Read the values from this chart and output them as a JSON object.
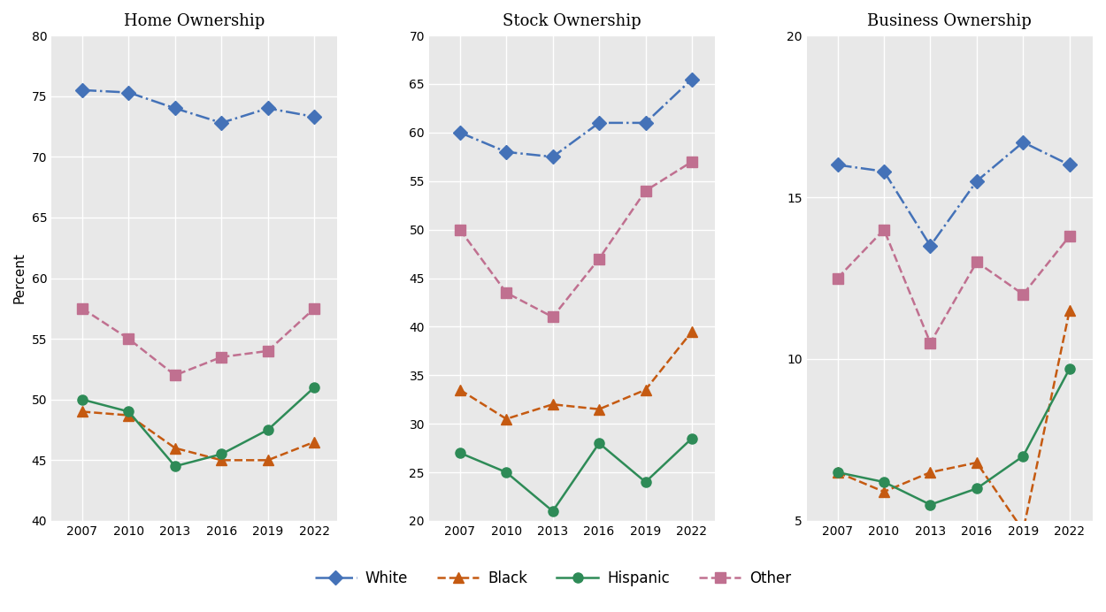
{
  "years": [
    2007,
    2010,
    2013,
    2016,
    2019,
    2022
  ],
  "home_ownership": {
    "White": [
      75.5,
      75.3,
      74.0,
      72.8,
      74.0,
      73.3
    ],
    "Black": [
      49.0,
      48.7,
      46.0,
      45.0,
      45.0,
      46.5
    ],
    "Hispanic": [
      50.0,
      49.0,
      44.5,
      45.5,
      47.5,
      51.0
    ],
    "Other": [
      57.5,
      55.0,
      52.0,
      53.5,
      54.0,
      57.5
    ]
  },
  "stock_ownership": {
    "White": [
      60.0,
      58.0,
      57.5,
      61.0,
      61.0,
      65.5
    ],
    "Black": [
      33.5,
      30.5,
      32.0,
      31.5,
      33.5,
      39.5
    ],
    "Hispanic": [
      27.0,
      25.0,
      21.0,
      28.0,
      24.0,
      28.5
    ],
    "Other": [
      50.0,
      43.5,
      41.0,
      47.0,
      54.0,
      57.0
    ]
  },
  "business_ownership": {
    "White": [
      16.0,
      15.8,
      13.5,
      15.5,
      16.7,
      16.0
    ],
    "Black": [
      6.5,
      5.9,
      6.5,
      6.8,
      4.7,
      11.5
    ],
    "Hispanic": [
      6.5,
      6.2,
      5.5,
      6.0,
      7.0,
      9.7
    ],
    "Other": [
      12.5,
      14.0,
      10.5,
      13.0,
      12.0,
      13.8
    ]
  },
  "colors": {
    "White": "#4472b8",
    "Black": "#c55a11",
    "Hispanic": "#2e8b57",
    "Other": "#c07090"
  },
  "markers": {
    "White": "D",
    "Black": "^",
    "Hispanic": "o",
    "Other": "s"
  },
  "linestyles": {
    "White": "-.",
    "Black": "--",
    "Hispanic": "-",
    "Other": "--"
  },
  "ylims": {
    "home": [
      40,
      80
    ],
    "stock": [
      20,
      70
    ],
    "business": [
      5,
      20
    ]
  },
  "yticks": {
    "home": [
      40,
      45,
      50,
      55,
      60,
      65,
      70,
      75,
      80
    ],
    "stock": [
      20,
      25,
      30,
      35,
      40,
      45,
      50,
      55,
      60,
      65,
      70
    ],
    "business": [
      5,
      10,
      15,
      20
    ]
  },
  "titles": [
    "Home Ownership",
    "Stock Ownership",
    "Business Ownership"
  ],
  "ylabel": "Percent",
  "panel_bg": "#e8e8e8",
  "fig_bg": "#ffffff",
  "grid_color": "#ffffff"
}
